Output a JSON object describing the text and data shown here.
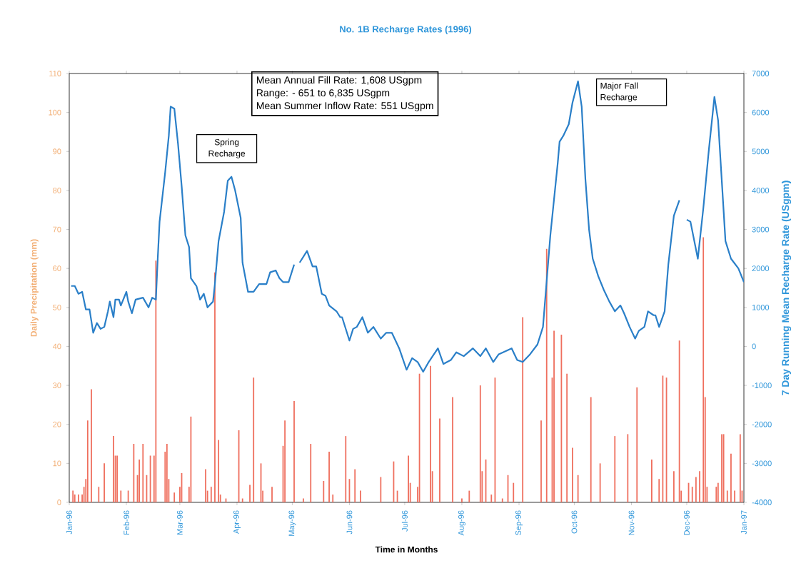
{
  "chart_data": {
    "type": "bar",
    "title": "No. 1B Recharge Rates (1996)",
    "xlabel": "Time in Months",
    "ylabel": "Daily Precipitation (mm)",
    "y2label": "7 Day Running Mean Recharge Rate (USgpm)",
    "annotations": [
      "Mean Annual Fill Rate:  1,608 USgpm",
      "Range:    - 651 to 6,835 USgpm",
      "Mean Summer Inflow Rate:  551 USgpm",
      "Spring Recharge",
      "Major Fall Recharge"
    ],
    "xlim": [
      "1996-01-01",
      "1997-01-01"
    ],
    "xticks": [
      {
        "value": "1996-01-01",
        "label": "Jan-96"
      },
      {
        "value": "1996-02-01",
        "label": "Feb-96"
      },
      {
        "value": "1996-03-01",
        "label": "Mar-96"
      },
      {
        "value": "1996-04-01",
        "label": "Apr-96"
      },
      {
        "value": "1996-05-01",
        "label": "May-96"
      },
      {
        "value": "1996-06-01",
        "label": "Jun-96"
      },
      {
        "value": "1996-07-01",
        "label": "Jul-96"
      },
      {
        "value": "1996-08-01",
        "label": "Aug-96"
      },
      {
        "value": "1996-09-01",
        "label": "Sep-96"
      },
      {
        "value": "1996-10-01",
        "label": "Oct-96"
      },
      {
        "value": "1996-11-01",
        "label": "Nov-96"
      },
      {
        "value": "1996-12-01",
        "label": "Dec-96"
      },
      {
        "value": "1997-01-01",
        "label": "Jan-97"
      }
    ],
    "ylim": [
      0,
      110
    ],
    "yticks": [
      0,
      10,
      20,
      30,
      40,
      50,
      60,
      70,
      80,
      90,
      100,
      110
    ],
    "y2lim": [
      -4000,
      7000
    ],
    "y2ticks": [
      -4000,
      -3000,
      -2000,
      -1000,
      0,
      1000,
      2000,
      3000,
      4000,
      5000,
      6000,
      7000
    ],
    "series": [
      {
        "color": "#ef6f5e",
        "x": [
          "1996-01-03",
          "1996-01-04",
          "1996-01-06",
          "1996-01-08",
          "1996-01-09",
          "1996-01-10",
          "1996-01-11",
          "1996-01-13",
          "1996-01-17",
          "1996-01-20",
          "1996-01-25",
          "1996-01-26",
          "1996-01-27",
          "1996-01-29",
          "1996-02-02",
          "1996-02-05",
          "1996-02-07",
          "1996-02-08",
          "1996-02-10",
          "1996-02-12",
          "1996-02-14",
          "1996-02-16",
          "1996-02-17",
          "1996-02-22",
          "1996-02-23",
          "1996-02-24",
          "1996-02-27",
          "1996-03-01",
          "1996-03-02",
          "1996-03-06",
          "1996-03-07",
          "1996-03-15",
          "1996-03-16",
          "1996-03-18",
          "1996-03-20",
          "1996-03-22",
          "1996-03-23",
          "1996-03-26",
          "1996-04-02",
          "1996-04-04",
          "1996-04-08",
          "1996-04-10",
          "1996-04-14",
          "1996-04-15",
          "1996-04-20",
          "1996-04-26",
          "1996-04-27",
          "1996-05-02",
          "1996-05-07",
          "1996-05-11",
          "1996-05-18",
          "1996-05-21",
          "1996-05-23",
          "1996-05-30",
          "1996-06-01",
          "1996-06-04",
          "1996-06-07",
          "1996-06-18",
          "1996-06-25",
          "1996-06-27",
          "1996-07-03",
          "1996-07-04",
          "1996-07-08",
          "1996-07-09",
          "1996-07-15",
          "1996-07-16",
          "1996-07-20",
          "1996-07-27",
          "1996-08-01",
          "1996-08-05",
          "1996-08-11",
          "1996-08-12",
          "1996-08-14",
          "1996-08-17",
          "1996-08-19",
          "1996-08-23",
          "1996-08-26",
          "1996-08-29",
          "1996-09-03",
          "1996-09-13",
          "1996-09-16",
          "1996-09-19",
          "1996-09-20",
          "1996-09-24",
          "1996-09-27",
          "1996-09-30",
          "1996-10-03",
          "1996-10-10",
          "1996-10-15",
          "1996-10-23",
          "1996-10-30",
          "1996-11-04",
          "1996-11-12",
          "1996-11-16",
          "1996-11-18",
          "1996-11-20",
          "1996-11-24",
          "1996-11-27",
          "1996-11-28",
          "1996-12-02",
          "1996-12-04",
          "1996-12-06",
          "1996-12-08",
          "1996-12-10",
          "1996-12-11",
          "1996-12-12",
          "1996-12-17",
          "1996-12-18",
          "1996-12-20",
          "1996-12-21",
          "1996-12-23",
          "1996-12-25",
          "1996-12-27",
          "1996-12-30",
          "1996-12-31"
        ],
        "values": [
          3,
          2,
          2,
          2,
          4,
          6,
          21,
          29,
          4,
          10,
          17,
          12,
          12,
          3,
          3,
          15,
          7,
          11,
          15,
          7,
          12,
          12,
          62,
          13,
          15,
          6,
          2.5,
          4,
          7.5,
          4,
          22,
          8.5,
          3,
          4,
          59,
          16,
          2,
          1,
          18.5,
          1,
          4.5,
          32,
          10,
          3,
          4,
          14.5,
          21,
          26,
          1,
          15,
          5.5,
          13,
          2,
          17,
          6,
          8.5,
          3,
          6.5,
          10.5,
          3,
          12,
          5,
          4,
          33,
          35,
          8,
          21.5,
          27,
          1,
          3,
          30,
          8,
          11,
          2,
          32,
          1,
          7,
          5,
          47.5,
          21,
          65,
          32,
          44,
          43,
          33,
          14,
          7,
          27,
          10,
          17,
          17.5,
          29.5,
          11,
          6,
          32.5,
          32,
          8,
          41.5,
          3,
          5,
          4,
          6.5,
          8,
          68,
          27,
          4,
          4,
          5,
          17.5,
          17.5,
          3,
          12.5,
          3,
          17.5,
          3
        ]
      },
      {
        "type": "line",
        "axis": "y2",
        "color": "#2a7fc8",
        "x": [
          "1996-01-02",
          "1996-01-04",
          "1996-01-06",
          "1996-01-08",
          "1996-01-10",
          "1996-01-12",
          "1996-01-14",
          "1996-01-16",
          "1996-01-18",
          "1996-01-20",
          "1996-01-22",
          "1996-01-23",
          "1996-01-25",
          "1996-01-26",
          "1996-01-28",
          "1996-01-29",
          "1996-02-01",
          "1996-02-02",
          "1996-02-04",
          "1996-02-06",
          "1996-02-10",
          "1996-02-13",
          "1996-02-15",
          "1996-02-17",
          "1996-02-18",
          "1996-02-19",
          "1996-02-22",
          "1996-02-24",
          "1996-02-25",
          "1996-02-27",
          "1996-02-29",
          "1996-03-02",
          "1996-03-04",
          "1996-03-06",
          "1996-03-07",
          "1996-03-10",
          "1996-03-12",
          "1996-03-14",
          "1996-03-16",
          "1996-03-19",
          "1996-03-20",
          "1996-03-22",
          "1996-03-25",
          "1996-03-27",
          "1996-03-29",
          "1996-03-31",
          "1996-04-03",
          "1996-04-04",
          "1996-04-07",
          "1996-04-10",
          "1996-04-13",
          "1996-04-17",
          "1996-04-19",
          "1996-04-22",
          "1996-04-24",
          "1996-04-26",
          "1996-04-29",
          "1996-05-02",
          "1996-05-03",
          "1996-05-05",
          "1996-05-09",
          "1996-05-12",
          "1996-05-14",
          "1996-05-17",
          "1996-05-19",
          "1996-05-21",
          "1996-05-25",
          "1996-05-27",
          "1996-05-28",
          "1996-06-01",
          "1996-06-03",
          "1996-06-05",
          "1996-06-08",
          "1996-06-11",
          "1996-06-14",
          "1996-06-18",
          "1996-06-21",
          "1996-06-24",
          "1996-06-28",
          "1996-07-02",
          "1996-07-05",
          "1996-07-08",
          "1996-07-11",
          "1996-07-14",
          "1996-07-19",
          "1996-07-22",
          "1996-07-26",
          "1996-07-29",
          "1996-08-02",
          "1996-08-07",
          "1996-08-11",
          "1996-08-14",
          "1996-08-18",
          "1996-08-21",
          "1996-08-28",
          "1996-08-31",
          "1996-09-03",
          "1996-09-07",
          "1996-09-11",
          "1996-09-14",
          "1996-09-18",
          "1996-09-22",
          "1996-09-23",
          "1996-09-25",
          "1996-09-28",
          "1996-09-30",
          "1996-10-03",
          "1996-10-05",
          "1996-10-07",
          "1996-10-09",
          "1996-10-11",
          "1996-10-14",
          "1996-10-17",
          "1996-10-20",
          "1996-10-23",
          "1996-10-26",
          "1996-10-28",
          "1996-10-31",
          "1996-11-03",
          "1996-11-05",
          "1996-11-08",
          "1996-11-10",
          "1996-11-13",
          "1996-11-14",
          "1996-11-16",
          "1996-11-19",
          "1996-11-21",
          "1996-11-24",
          "1996-11-27",
          "1996-11-29",
          "1996-12-01",
          "1996-12-03",
          "1996-12-07",
          "1996-12-10",
          "1996-12-13",
          "1996-12-16",
          "1996-12-18",
          "1996-12-22",
          "1996-12-25",
          "1996-12-29",
          "1997-01-01"
        ],
        "values": [
          1550,
          1550,
          1350,
          1400,
          950,
          950,
          350,
          600,
          450,
          500,
          900,
          1150,
          750,
          1200,
          1200,
          1050,
          1400,
          1150,
          850,
          1200,
          1250,
          1000,
          1250,
          1200,
          2250,
          3200,
          4450,
          5400,
          6150,
          6100,
          5200,
          4100,
          2850,
          2550,
          1750,
          1550,
          1200,
          1350,
          1000,
          1150,
          1600,
          2700,
          3450,
          4250,
          4350,
          4000,
          3300,
          2150,
          1400,
          1400,
          1600,
          1600,
          1900,
          1950,
          1750,
          1650,
          1650,
          2100,
          null,
          2150,
          2450,
          2050,
          2050,
          1350,
          1300,
          1050,
          900,
          750,
          750,
          150,
          450,
          500,
          750,
          350,
          500,
          200,
          350,
          350,
          -50,
          -600,
          -300,
          -400,
          -650,
          -400,
          -50,
          -450,
          -350,
          -150,
          -250,
          -50,
          -250,
          -50,
          -400,
          -200,
          -50,
          -350,
          -400,
          -200,
          50,
          500,
          2850,
          4700,
          5250,
          5400,
          5700,
          6250,
          6800,
          6150,
          4300,
          3000,
          2250,
          1800,
          1450,
          1150,
          900,
          1050,
          850,
          500,
          200,
          400,
          500,
          900,
          800,
          800,
          500,
          900,
          2100,
          3350,
          3750,
          null,
          3250,
          3200,
          2250,
          3550,
          5050,
          6400,
          5800,
          2700,
          2250,
          2000,
          1650
        ]
      }
    ]
  }
}
